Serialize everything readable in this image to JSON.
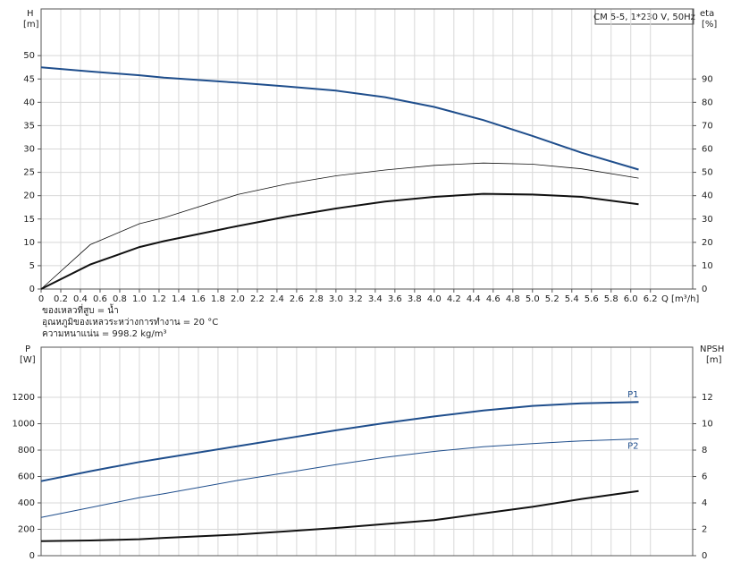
{
  "chart_data": [
    {
      "type": "line",
      "title": "CM 5-5, 1*230 V, 50Hz",
      "y_label": "H",
      "y_unit": "[m]",
      "y2_label": "eta",
      "y2_unit": "[%]",
      "x_label": "Q [m³/h]",
      "notes": [
        "ของเหลวที่สูบ = น้ำ",
        "อุณหภูมิของเหลวระหว่างการทำงาน = 20 °C",
        "ความหนาแน่น = 998.2 kg/m³"
      ],
      "grid": true,
      "xlim": [
        0,
        6.63
      ],
      "ylim": [
        0,
        60
      ],
      "y2lim": [
        0,
        120
      ],
      "xticks": [
        0,
        0.2,
        0.4,
        0.6,
        0.8,
        {
          "value": 1,
          "label": "1.0"
        },
        1.2,
        1.4,
        1.6,
        1.8,
        {
          "value": 2,
          "label": "2.0"
        },
        2.2,
        2.4,
        2.6,
        2.8,
        {
          "value": 3,
          "label": "3.0"
        },
        3.2,
        3.4,
        3.6,
        3.8,
        {
          "value": 4,
          "label": "4.0"
        },
        4.2,
        4.4,
        4.6,
        4.8,
        {
          "value": 5,
          "label": "5.0"
        },
        5.2,
        5.4,
        5.6,
        5.8,
        {
          "value": 6,
          "label": "6.0"
        },
        6.2
      ],
      "yticks": [
        0,
        5,
        10,
        15,
        20,
        25,
        30,
        35,
        40,
        45,
        50
      ],
      "y2ticks": [
        0,
        10,
        20,
        30,
        40,
        50,
        60,
        70,
        80,
        90
      ],
      "x": [
        0,
        0.5,
        1,
        1.25,
        2,
        2.5,
        3,
        3.5,
        4,
        4.5,
        5,
        5.5,
        6.08
      ],
      "series": [
        {
          "color": "#1f4e8c",
          "line_width": 2,
          "values": [
            47.5,
            46.6,
            45.8,
            45.3,
            44.2,
            43.4,
            42.5,
            41.1,
            39,
            36.2,
            32.8,
            29.2,
            25.6
          ]
        },
        {
          "color": "#111111",
          "line_width": 0.8,
          "axis": "y2",
          "values": [
            0,
            19,
            28,
            30.5,
            40.5,
            45,
            48.5,
            51,
            53,
            54,
            53.5,
            51.5,
            47.5
          ]
        },
        {
          "color": "#111111",
          "line_width": 2,
          "axis": "y2",
          "values": [
            0,
            10.5,
            18,
            20.5,
            27,
            31,
            34.5,
            37.5,
            39.5,
            40.8,
            40.5,
            39.5,
            36.3
          ]
        }
      ]
    },
    {
      "type": "line",
      "y_label": "P",
      "y_unit": "[W]",
      "y2_label": "NPSH",
      "y2_unit": "[m]",
      "grid": true,
      "xlim": [
        0,
        6.63
      ],
      "ylim": [
        0,
        1580
      ],
      "y2lim": [
        0,
        15.8
      ],
      "yticks": [
        0,
        200,
        400,
        600,
        800,
        1000,
        1200
      ],
      "y2ticks": [
        0,
        2,
        4,
        6,
        8,
        10,
        12
      ],
      "x": [
        0,
        0.5,
        1,
        1.25,
        2,
        2.5,
        3,
        3.5,
        4,
        4.5,
        5,
        5.5,
        6.08
      ],
      "series": [
        {
          "name": "P1",
          "color": "#1f4e8c",
          "line_width": 2,
          "values": [
            565,
            640,
            710,
            740,
            830,
            890,
            950,
            1005,
            1055,
            1100,
            1135,
            1155,
            1165
          ]
        },
        {
          "name": "P2",
          "color": "#1f4e8c",
          "line_width": 1,
          "values": [
            290,
            365,
            440,
            470,
            570,
            630,
            690,
            745,
            790,
            825,
            850,
            870,
            885
          ]
        },
        {
          "color": "#111111",
          "line_width": 2,
          "axis": "y2",
          "values": [
            1.1,
            1.15,
            1.25,
            1.35,
            1.6,
            1.85,
            2.1,
            2.4,
            2.7,
            3.2,
            3.7,
            4.3,
            4.9
          ]
        }
      ]
    }
  ]
}
